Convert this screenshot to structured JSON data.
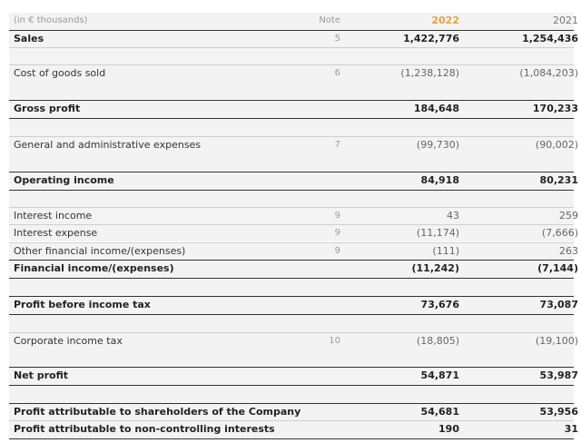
{
  "header": {
    "unit": "(in € thousands)",
    "note": "Note",
    "year_current": "2022",
    "year_prior": "2021"
  },
  "rows": [
    {
      "label": "Sales",
      "note": "5",
      "y2022": "1,422,776",
      "y2021": "1,254,436"
    },
    {
      "label": "Cost of goods sold",
      "note": "6",
      "y2022": "(1,238,128)",
      "y2021": "(1,084,203)"
    },
    {
      "label": "Gross profit",
      "note": "",
      "y2022": "184,648",
      "y2021": "170,233"
    },
    {
      "label": "General and administrative expenses",
      "note": "7",
      "y2022": "(99,730)",
      "y2021": "(90,002)"
    },
    {
      "label": "Operating income",
      "note": "",
      "y2022": "84,918",
      "y2021": "80,231"
    },
    {
      "label": "Interest income",
      "note": "9",
      "y2022": "43",
      "y2021": "259"
    },
    {
      "label": "Interest expense",
      "note": "9",
      "y2022": "(11,174)",
      "y2021": "(7,666)"
    },
    {
      "label": "Other financial income/(expenses)",
      "note": "9",
      "y2022": "(111)",
      "y2021": "263"
    },
    {
      "label": "Financial income/(expenses)",
      "note": "",
      "y2022": "(11,242)",
      "y2021": "(7,144)"
    },
    {
      "label": "Profit before income tax",
      "note": "",
      "y2022": "73,676",
      "y2021": "73,087"
    },
    {
      "label": "Corporate income tax",
      "note": "10",
      "y2022": "(18,805)",
      "y2021": "(19,100)"
    },
    {
      "label": "Net profit",
      "note": "",
      "y2022": "54,871",
      "y2021": "53,987"
    },
    {
      "label": "Profit attributable to shareholders of the Company",
      "note": "",
      "y2022": "54,681",
      "y2021": "53,956"
    },
    {
      "label": "Profit attributable to non-controlling interests",
      "note": "",
      "y2022": "190",
      "y2021": "31"
    }
  ]
}
